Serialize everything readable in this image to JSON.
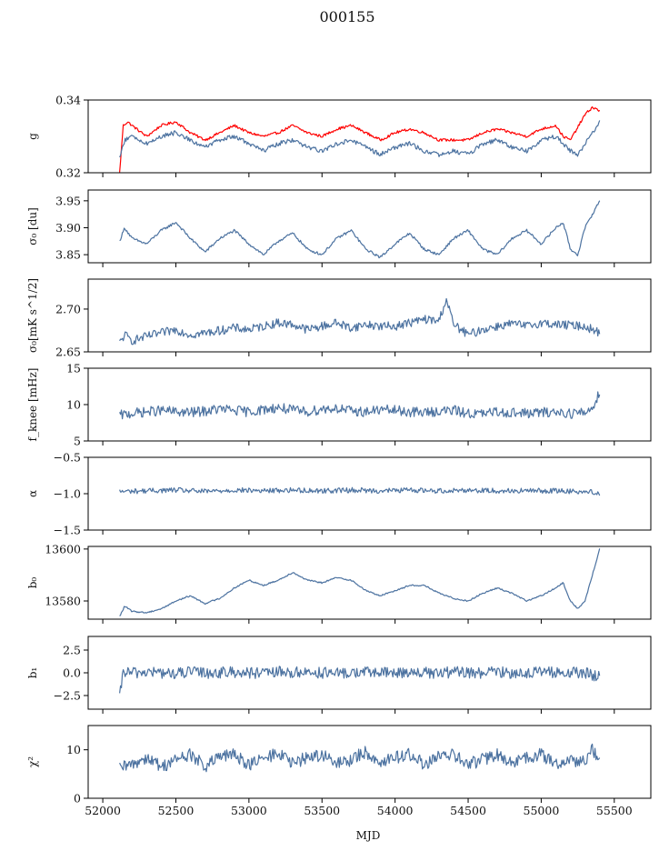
{
  "title": "000155",
  "chart_data": {
    "type": "line",
    "xlabel": "MJD",
    "xlim": [
      51900,
      55750
    ],
    "xticks": [
      52000,
      52500,
      53000,
      53500,
      54000,
      54500,
      55000,
      55500
    ],
    "xtick_labels": [
      "52000",
      "52500",
      "53000",
      "53500",
      "54000",
      "54500",
      "55000",
      "55500"
    ],
    "panels": [
      {
        "id": "g",
        "ylabel": "g",
        "ylim": [
          0.32,
          0.34
        ],
        "yticks": [
          0.32,
          0.34
        ],
        "ytick_labels": [
          "0.32",
          "0.34"
        ],
        "series": [
          {
            "color": "#ff0000",
            "x": [
              52115,
              52140,
              52170,
              52200,
              52300,
              52400,
              52500,
              52600,
              52700,
              52800,
              52900,
              53000,
              53100,
              53200,
              53300,
              53400,
              53500,
              53600,
              53700,
              53800,
              53900,
              54000,
              54100,
              54200,
              54300,
              54400,
              54500,
              54600,
              54700,
              54800,
              54900,
              55000,
              55100,
              55150,
              55200,
              55300,
              55350,
              55400
            ],
            "y": [
              0.32,
              0.333,
              0.334,
              0.333,
              0.33,
              0.333,
              0.334,
              0.331,
              0.329,
              0.331,
              0.333,
              0.331,
              0.33,
              0.331,
              0.333,
              0.331,
              0.33,
              0.332,
              0.333,
              0.331,
              0.329,
              0.331,
              0.332,
              0.331,
              0.329,
              0.329,
              0.329,
              0.331,
              0.332,
              0.331,
              0.33,
              0.332,
              0.333,
              0.33,
              0.329,
              0.336,
              0.338,
              0.337
            ]
          },
          {
            "color": "#4c72a0",
            "x": [
              52115,
              52150,
              52200,
              52300,
              52400,
              52500,
              52600,
              52700,
              52800,
              52900,
              53000,
              53100,
              53200,
              53300,
              53400,
              53500,
              53600,
              53700,
              53800,
              53900,
              54000,
              54100,
              54200,
              54300,
              54400,
              54500,
              54600,
              54700,
              54800,
              54900,
              55000,
              55100,
              55200,
              55250,
              55300,
              55400
            ],
            "y": [
              0.324,
              0.329,
              0.33,
              0.328,
              0.33,
              0.331,
              0.329,
              0.327,
              0.329,
              0.33,
              0.328,
              0.326,
              0.328,
              0.329,
              0.327,
              0.326,
              0.328,
              0.329,
              0.327,
              0.325,
              0.327,
              0.328,
              0.326,
              0.325,
              0.326,
              0.325,
              0.328,
              0.329,
              0.327,
              0.326,
              0.329,
              0.33,
              0.326,
              0.325,
              0.328,
              0.334
            ]
          }
        ]
      },
      {
        "id": "sigma0-du",
        "ylabel": "σ₀ [du]",
        "ylim": [
          3.835,
          3.97
        ],
        "yticks": [
          3.85,
          3.9,
          3.95
        ],
        "ytick_labels": [
          "3.85",
          "3.90",
          "3.95"
        ],
        "series": [
          {
            "color": "#4c72a0",
            "x": [
              52115,
              52150,
              52200,
              52300,
              52400,
              52500,
              52600,
              52700,
              52800,
              52900,
              53000,
              53100,
              53200,
              53300,
              53400,
              53500,
              53600,
              53700,
              53800,
              53900,
              54000,
              54100,
              54200,
              54300,
              54400,
              54500,
              54600,
              54700,
              54800,
              54900,
              55000,
              55100,
              55150,
              55200,
              55250,
              55300,
              55400
            ],
            "y": [
              3.875,
              3.9,
              3.88,
              3.87,
              3.895,
              3.91,
              3.88,
              3.855,
              3.88,
              3.895,
              3.87,
              3.85,
              3.875,
              3.89,
              3.86,
              3.85,
              3.88,
              3.895,
              3.86,
              3.845,
              3.87,
              3.89,
              3.86,
              3.85,
              3.88,
              3.895,
              3.86,
              3.85,
              3.88,
              3.895,
              3.87,
              3.9,
              3.91,
              3.86,
              3.85,
              3.9,
              3.95
            ]
          }
        ]
      },
      {
        "id": "sigma0-mk",
        "ylabel": "σ₀[mK s^1/2]",
        "ylim": [
          2.65,
          2.735
        ],
        "yticks": [
          2.65,
          2.7
        ],
        "ytick_labels": [
          "2.65",
          "2.70"
        ],
        "series": [
          {
            "color": "#4c72a0",
            "x": [
              52115,
              52150,
              52200,
              52300,
              52400,
              52500,
              52600,
              52700,
              52800,
              52900,
              53000,
              53100,
              53200,
              53300,
              53400,
              53500,
              53600,
              53700,
              53800,
              53900,
              54000,
              54100,
              54200,
              54300,
              54350,
              54400,
              54500,
              54600,
              54700,
              54800,
              54900,
              55000,
              55100,
              55200,
              55300,
              55400
            ],
            "y": [
              2.66,
              2.67,
              2.663,
              2.668,
              2.672,
              2.676,
              2.67,
              2.672,
              2.675,
              2.678,
              2.676,
              2.68,
              2.684,
              2.682,
              2.676,
              2.68,
              2.684,
              2.678,
              2.682,
              2.68,
              2.68,
              2.684,
              2.688,
              2.686,
              2.712,
              2.682,
              2.67,
              2.676,
              2.68,
              2.683,
              2.68,
              2.684,
              2.682,
              2.681,
              2.68,
              2.672
            ]
          }
        ]
      },
      {
        "id": "fknee",
        "ylabel": "f_knee [mHz]",
        "ylim": [
          5,
          15
        ],
        "yticks": [
          5,
          10,
          15
        ],
        "ytick_labels": [
          "5",
          "10",
          "15"
        ],
        "series": [
          {
            "color": "#4c72a0",
            "x": [
              52115,
              52200,
              52300,
              52400,
              52500,
              52600,
              52700,
              52800,
              52900,
              53000,
              53100,
              53200,
              53300,
              53400,
              53500,
              53600,
              53700,
              53800,
              53900,
              54000,
              54100,
              54200,
              54300,
              54400,
              54500,
              54600,
              54700,
              54800,
              54900,
              55000,
              55100,
              55200,
              55300,
              55350,
              55400
            ],
            "y": [
              8.5,
              8.8,
              9.0,
              9.2,
              9.0,
              8.9,
              9.1,
              9.4,
              9.2,
              9.0,
              9.3,
              9.6,
              9.2,
              9.0,
              9.4,
              9.5,
              9.1,
              9.0,
              9.3,
              9.2,
              9.0,
              8.9,
              9.1,
              9.2,
              8.8,
              8.7,
              9.0,
              8.9,
              8.8,
              8.9,
              9.0,
              8.8,
              8.9,
              9.5,
              11.8
            ]
          }
        ]
      },
      {
        "id": "alpha",
        "ylabel": "α",
        "ylim": [
          -1.5,
          -0.5
        ],
        "yticks": [
          -1.5,
          -1.0,
          -0.5
        ],
        "ytick_labels": [
          "−1.5",
          "−1.0",
          "−0.5"
        ],
        "series": [
          {
            "color": "#4c72a0",
            "x": [
              52115,
              52300,
              52500,
              52700,
              52900,
              53100,
              53300,
              53500,
              53700,
              53900,
              54100,
              54300,
              54500,
              54700,
              54900,
              55100,
              55300,
              55400
            ],
            "y": [
              -0.97,
              -0.96,
              -0.95,
              -0.97,
              -0.95,
              -0.96,
              -0.95,
              -0.96,
              -0.95,
              -0.96,
              -0.95,
              -0.96,
              -0.95,
              -0.96,
              -0.96,
              -0.96,
              -0.97,
              -0.99
            ]
          }
        ]
      },
      {
        "id": "b0",
        "ylabel": "b₀",
        "ylim": [
          13573,
          13601
        ],
        "yticks": [
          13580,
          13600
        ],
        "ytick_labels": [
          "13580",
          "13600"
        ],
        "series": [
          {
            "color": "#4c72a0",
            "x": [
              52115,
              52150,
              52200,
              52300,
              52400,
              52500,
              52600,
              52700,
              52800,
              52900,
              53000,
              53100,
              53200,
              53300,
              53400,
              53500,
              53600,
              53700,
              53800,
              53900,
              54000,
              54100,
              54200,
              54300,
              54400,
              54500,
              54600,
              54700,
              54800,
              54900,
              55000,
              55100,
              55150,
              55200,
              55250,
              55300,
              55350,
              55400
            ],
            "y": [
              13574,
              13578,
              13576,
              13575.5,
              13577,
              13580,
              13582,
              13579,
              13581,
              13585,
              13588,
              13586,
              13588,
              13591,
              13588,
              13587,
              13589,
              13588,
              13584,
              13582,
              13584,
              13586,
              13586,
              13583,
              13581,
              13580,
              13583,
              13585,
              13583,
              13580,
              13582,
              13585,
              13587,
              13580,
              13577,
              13580,
              13590,
              13600
            ]
          }
        ]
      },
      {
        "id": "b1",
        "ylabel": "b₁",
        "ylim": [
          -4,
          4
        ],
        "yticks": [
          -2.5,
          0.0,
          2.5
        ],
        "ytick_labels": [
          "−2.5",
          "0.0",
          "2.5"
        ],
        "series": [
          {
            "color": "#4c72a0",
            "x": [
              52115,
              52140,
              52200,
              52300,
              52400,
              52500,
              52600,
              52700,
              52800,
              52900,
              53000,
              53100,
              53200,
              53300,
              53400,
              53500,
              53600,
              53700,
              53800,
              53900,
              54000,
              54100,
              54200,
              54300,
              54400,
              54500,
              54600,
              54700,
              54800,
              54900,
              55000,
              55100,
              55200,
              55300,
              55400
            ],
            "y": [
              -2.8,
              0.1,
              0.0,
              0.1,
              0.0,
              -0.1,
              0.1,
              0.0,
              0.0,
              0.1,
              0.0,
              -0.1,
              0.1,
              0.0,
              0.1,
              0.0,
              -0.1,
              0.0,
              0.1,
              0.0,
              0.0,
              0.1,
              0.0,
              -0.1,
              0.1,
              0.0,
              0.0,
              0.1,
              0.0,
              0.0,
              0.1,
              0.0,
              0.0,
              0.0,
              -0.5
            ]
          }
        ]
      },
      {
        "id": "chi2",
        "ylabel": "χ²",
        "ylim": [
          0,
          15
        ],
        "yticks": [
          0,
          10
        ],
        "ytick_labels": [
          "0",
          "10"
        ],
        "series": [
          {
            "color": "#4c72a0",
            "x": [
              52115,
              52200,
              52300,
              52400,
              52500,
              52600,
              52700,
              52800,
              52900,
              53000,
              53100,
              53200,
              53300,
              53400,
              53500,
              53600,
              53700,
              53800,
              53900,
              54000,
              54100,
              54200,
              54300,
              54400,
              54500,
              54600,
              54700,
              54800,
              54900,
              55000,
              55100,
              55200,
              55300,
              55350,
              55400
            ],
            "y": [
              6.0,
              7.0,
              8.5,
              6.5,
              8.0,
              9.0,
              6.5,
              8.5,
              9.0,
              7.0,
              8.0,
              9.5,
              7.0,
              8.5,
              9.0,
              7.0,
              8.0,
              9.5,
              7.5,
              8.5,
              9.0,
              7.0,
              8.5,
              9.0,
              7.0,
              8.0,
              9.0,
              7.0,
              8.5,
              9.0,
              7.0,
              8.0,
              7.5,
              10.0,
              8.5
            ]
          }
        ]
      }
    ]
  }
}
